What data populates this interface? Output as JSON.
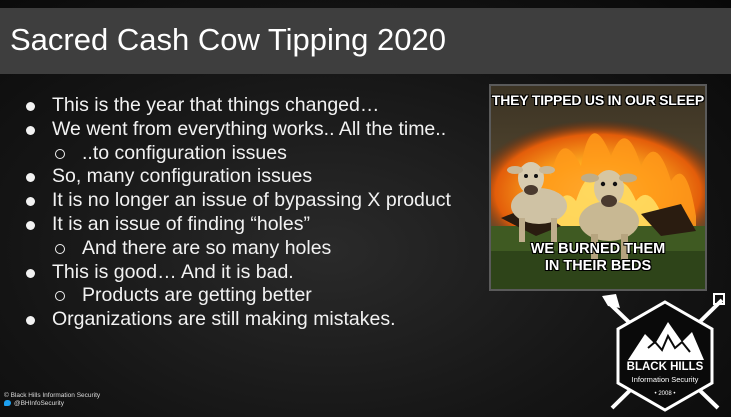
{
  "slide": {
    "title": "Sacred Cash Cow Tipping 2020",
    "bullets": [
      {
        "level": 1,
        "text": "This is the year that things changed…"
      },
      {
        "level": 1,
        "text": "We went from everything works..  All the time.."
      },
      {
        "level": 2,
        "text": "..to configuration issues"
      },
      {
        "level": 1,
        "text": "So, many configuration issues"
      },
      {
        "level": 1,
        "text": "It is no longer an issue of bypassing X product"
      },
      {
        "level": 1,
        "text": "It is an issue of finding “holes”"
      },
      {
        "level": 2,
        "text": "And there are so many holes"
      },
      {
        "level": 1,
        "text": "This is good…  And it is bad."
      },
      {
        "level": 2,
        "text": "Products are getting better"
      },
      {
        "level": 1,
        "text": "Organizations are still making mistakes."
      }
    ]
  },
  "meme": {
    "top_text": "THEY TIPPED US IN OUR SLEEP",
    "bottom_line1": "WE BURNED THEM",
    "bottom_line2": "IN THEIR BEDS"
  },
  "logo": {
    "name": "BLACK HILLS",
    "subtitle": "Information Security",
    "year": "• 2008 •"
  },
  "footer": {
    "copyright": "© Black Hills Information Security",
    "twitter": "@BHInfoSecurity"
  },
  "colors": {
    "title_bar": "#3e3e3e",
    "text": "#f2f2f2",
    "twitter_blue": "#1da1f2"
  }
}
